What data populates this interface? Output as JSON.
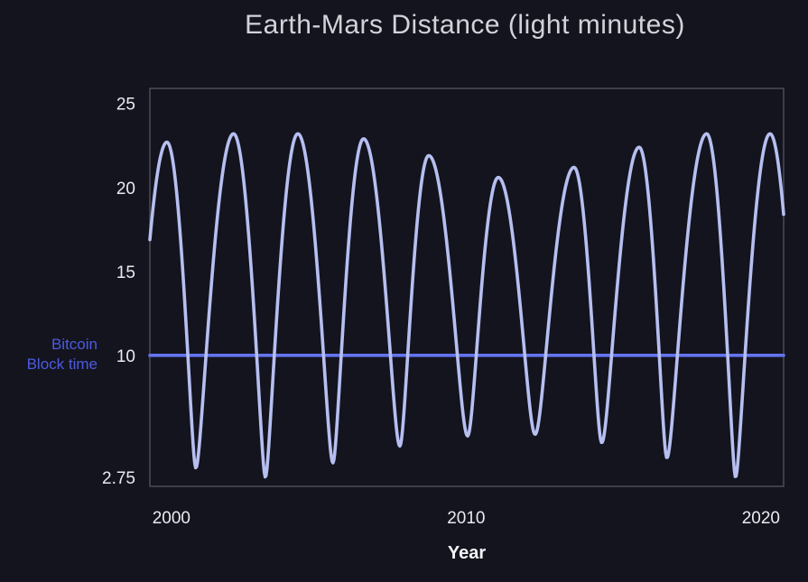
{
  "title": "Earth-Mars Distance (light minutes)",
  "annotation": {
    "line1": "Bitcoin",
    "line2": "Block time"
  },
  "colors": {
    "background": "#14141f",
    "curve": "#b6bff0",
    "hline": "#6474ef",
    "annotation": "#4d5be0",
    "title": "#d2d3d8",
    "tick_labels": "#e9ebee",
    "axis_spine": "#4d4d59"
  },
  "chart_data": {
    "type": "line",
    "title": "Earth-Mars Distance (light minutes)",
    "xlabel": "Year",
    "ylabel": "",
    "grid": false,
    "legend": "none",
    "xlim": [
      1999.27,
      2020.77
    ],
    "ylim": [
      2.2,
      25.9
    ],
    "xticks": [
      {
        "value": 2000,
        "label": "2000"
      },
      {
        "value": 2010,
        "label": "2010"
      },
      {
        "value": 2020,
        "label": "2020"
      }
    ],
    "yticks": [
      {
        "value": 2.75,
        "label": "2.75"
      },
      {
        "value": 10,
        "label": "10"
      },
      {
        "value": 15,
        "label": "15"
      },
      {
        "value": 20,
        "label": "20"
      },
      {
        "value": 25,
        "label": "25"
      }
    ],
    "series": [
      {
        "name": "Earth-Mars distance",
        "type": "oscillation-extremes",
        "interpolation": "sqrt-cos",
        "unit": "light minutes",
        "extremes": [
          [
            1998.62,
            3.2
          ],
          [
            1999.85,
            22.7
          ],
          [
            2000.83,
            3.3
          ],
          [
            2002.11,
            23.2
          ],
          [
            2003.19,
            2.75
          ],
          [
            2004.29,
            23.2
          ],
          [
            2005.48,
            3.6
          ],
          [
            2006.52,
            22.9
          ],
          [
            2007.75,
            4.6
          ],
          [
            2008.73,
            21.9
          ],
          [
            2010.05,
            5.2
          ],
          [
            2011.09,
            20.6
          ],
          [
            2012.34,
            5.3
          ],
          [
            2013.66,
            21.2
          ],
          [
            2014.6,
            4.8
          ],
          [
            2015.87,
            22.4
          ],
          [
            2016.81,
            3.9
          ],
          [
            2018.16,
            23.2
          ],
          [
            2019.14,
            2.75
          ],
          [
            2020.31,
            23.2
          ],
          [
            2021.4,
            3.3
          ]
        ]
      },
      {
        "name": "Bitcoin Block time",
        "type": "hline",
        "value": 10
      }
    ]
  }
}
